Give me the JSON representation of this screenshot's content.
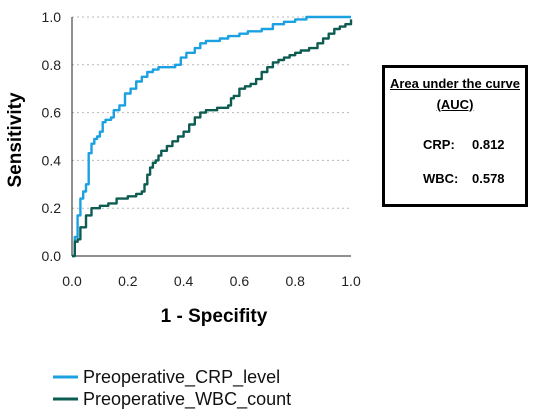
{
  "chart_data": {
    "type": "line",
    "title": "",
    "xlabel": "1 - Specifity",
    "ylabel": "Sensitivity",
    "xlim": [
      0,
      1
    ],
    "ylim": [
      0,
      1
    ],
    "x_ticks": [
      "0.0",
      "0.2",
      "0.4",
      "0.6",
      "0.8",
      "1.0"
    ],
    "y_ticks": [
      "0.0",
      "0.2",
      "0.4",
      "0.6",
      "0.8",
      "1.0"
    ],
    "grid": "horizontal dotted",
    "legend_position": "bottom-left",
    "series": [
      {
        "name": "Preoperative_CRP_level",
        "color": "#1ba1e2",
        "points": [
          [
            0,
            0
          ],
          [
            0.01,
            0.08
          ],
          [
            0.02,
            0.17
          ],
          [
            0.03,
            0.24
          ],
          [
            0.04,
            0.27
          ],
          [
            0.05,
            0.3
          ],
          [
            0.06,
            0.43
          ],
          [
            0.07,
            0.47
          ],
          [
            0.08,
            0.49
          ],
          [
            0.09,
            0.5
          ],
          [
            0.1,
            0.52
          ],
          [
            0.11,
            0.56
          ],
          [
            0.12,
            0.57
          ],
          [
            0.14,
            0.58
          ],
          [
            0.15,
            0.61
          ],
          [
            0.17,
            0.63
          ],
          [
            0.19,
            0.68
          ],
          [
            0.21,
            0.7
          ],
          [
            0.23,
            0.73
          ],
          [
            0.25,
            0.75
          ],
          [
            0.27,
            0.77
          ],
          [
            0.29,
            0.78
          ],
          [
            0.31,
            0.79
          ],
          [
            0.37,
            0.8
          ],
          [
            0.39,
            0.83
          ],
          [
            0.41,
            0.85
          ],
          [
            0.44,
            0.87
          ],
          [
            0.46,
            0.89
          ],
          [
            0.48,
            0.9
          ],
          [
            0.53,
            0.91
          ],
          [
            0.56,
            0.92
          ],
          [
            0.6,
            0.93
          ],
          [
            0.63,
            0.94
          ],
          [
            0.68,
            0.95
          ],
          [
            0.72,
            0.97
          ],
          [
            0.76,
            0.98
          ],
          [
            0.8,
            0.99
          ],
          [
            0.84,
            1.0
          ],
          [
            1.0,
            1.0
          ]
        ]
      },
      {
        "name": "Preoperative_WBC_count",
        "color": "#0d5c52",
        "points": [
          [
            0,
            0
          ],
          [
            0.01,
            0.06
          ],
          [
            0.02,
            0.07
          ],
          [
            0.03,
            0.12
          ],
          [
            0.05,
            0.17
          ],
          [
            0.07,
            0.2
          ],
          [
            0.1,
            0.21
          ],
          [
            0.13,
            0.22
          ],
          [
            0.16,
            0.24
          ],
          [
            0.2,
            0.25
          ],
          [
            0.23,
            0.26
          ],
          [
            0.25,
            0.27
          ],
          [
            0.26,
            0.3
          ],
          [
            0.27,
            0.34
          ],
          [
            0.28,
            0.37
          ],
          [
            0.29,
            0.39
          ],
          [
            0.3,
            0.4
          ],
          [
            0.31,
            0.42
          ],
          [
            0.32,
            0.44
          ],
          [
            0.34,
            0.46
          ],
          [
            0.36,
            0.48
          ],
          [
            0.38,
            0.5
          ],
          [
            0.4,
            0.52
          ],
          [
            0.42,
            0.55
          ],
          [
            0.44,
            0.58
          ],
          [
            0.46,
            0.6
          ],
          [
            0.48,
            0.61
          ],
          [
            0.52,
            0.62
          ],
          [
            0.56,
            0.63
          ],
          [
            0.57,
            0.66
          ],
          [
            0.58,
            0.67
          ],
          [
            0.6,
            0.7
          ],
          [
            0.62,
            0.71
          ],
          [
            0.64,
            0.72
          ],
          [
            0.66,
            0.74
          ],
          [
            0.68,
            0.77
          ],
          [
            0.7,
            0.79
          ],
          [
            0.72,
            0.81
          ],
          [
            0.74,
            0.82
          ],
          [
            0.76,
            0.83
          ],
          [
            0.78,
            0.84
          ],
          [
            0.8,
            0.85
          ],
          [
            0.82,
            0.86
          ],
          [
            0.85,
            0.87
          ],
          [
            0.88,
            0.89
          ],
          [
            0.9,
            0.91
          ],
          [
            0.92,
            0.93
          ],
          [
            0.94,
            0.95
          ],
          [
            0.96,
            0.96
          ],
          [
            0.98,
            0.97
          ],
          [
            1.0,
            0.99
          ]
        ]
      }
    ]
  },
  "auc_box": {
    "title_line1": "Area under the curve",
    "title_line2": "(AUC)",
    "rows": [
      {
        "label": "CRP:",
        "value": "0.812"
      },
      {
        "label": "WBC:",
        "value": "0.578"
      }
    ]
  }
}
